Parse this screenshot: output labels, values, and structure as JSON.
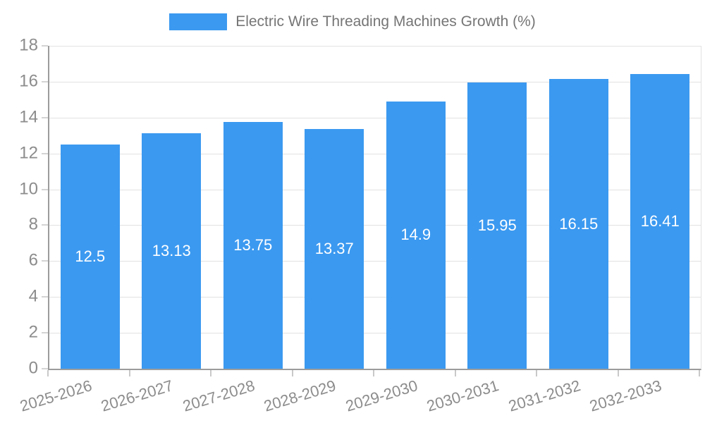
{
  "chart_data": {
    "type": "bar",
    "title": "Electric Wire Threading Machines Growth (%)",
    "categories": [
      "2025-2026",
      "2026-2027",
      "2027-2028",
      "2028-2029",
      "2029-2030",
      "2030-2031",
      "2031-2032",
      "2032-2033"
    ],
    "values": [
      12.5,
      13.13,
      13.75,
      13.37,
      14.9,
      15.95,
      16.15,
      16.41
    ],
    "ylim": [
      0,
      18
    ],
    "yticks": [
      0,
      2,
      4,
      6,
      8,
      10,
      12,
      14,
      16,
      18
    ],
    "grid": true,
    "legend_position": "top-center",
    "x_label_rotation_deg": -17,
    "colors": {
      "bar": "#3b99f0",
      "value_label": "#ffffff",
      "axis_line": "#9c9c9c",
      "gridline": "#e2e2e2",
      "axis_text": "#8c8c8c",
      "legend_text": "#757575",
      "background": "#ffffff"
    }
  }
}
